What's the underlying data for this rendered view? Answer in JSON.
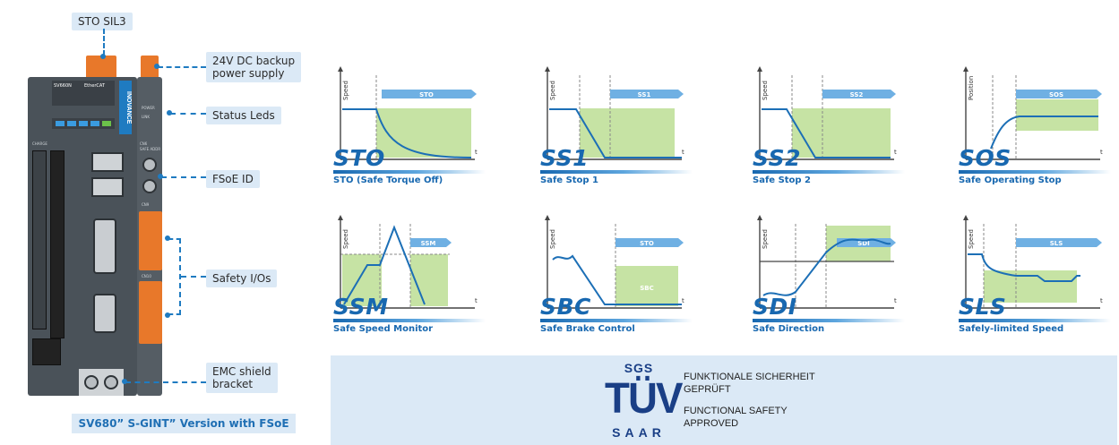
{
  "device": {
    "callouts": {
      "sto_sil3": "STO SIL3",
      "backup_line1": "24V DC backup",
      "backup_line2": "power supply",
      "status_leds": "Status Leds",
      "fsoe_id": "FSoE ID",
      "safety_ios": "Safety I/Os",
      "emc_line1": "EMC shield",
      "emc_line2": "bracket"
    },
    "caption": "SV680” S-GINT” Version with FSoE",
    "brand_side": "INOVANCE",
    "model_plate": "SV660N",
    "ethercat": "EtherCAT",
    "panel_labels": {
      "cn9": "CN9",
      "cn10": "CN10",
      "cn6": "CN6",
      "power": "POWER",
      "link": "LINK",
      "charge": "CHARGE",
      "safe_addr": "SAFE ADDR"
    }
  },
  "functions": [
    {
      "abbr": "STO",
      "name": "STO (Safe Torque Off)",
      "y_axis": "Speed",
      "x_axis": "t",
      "tag": "STO"
    },
    {
      "abbr": "SS1",
      "name": "Safe Stop 1",
      "y_axis": "Speed",
      "x_axis": "t",
      "tag": "SS1"
    },
    {
      "abbr": "SS2",
      "name": "Safe Stop 2",
      "y_axis": "Speed",
      "x_axis": "t",
      "tag": "SS2"
    },
    {
      "abbr": "SOS",
      "name": "Safe Operating Stop",
      "y_axis": "Position",
      "x_axis": "t",
      "tag": "SOS"
    },
    {
      "abbr": "SSM",
      "name": "Safe Speed Monitor",
      "y_axis": "Speed",
      "x_axis": "t",
      "tag": "SSM"
    },
    {
      "abbr": "SBC",
      "name": "Safe Brake Control",
      "y_axis": "Speed",
      "x_axis": "t",
      "tag": "STO",
      "zone_label": "SBC"
    },
    {
      "abbr": "SDI",
      "name": "Safe Direction",
      "y_axis": "Speed",
      "x_axis": "t",
      "tag": "SDI"
    },
    {
      "abbr": "SLS",
      "name": "Safely-limited Speed",
      "y_axis": "Speed",
      "x_axis": "t",
      "tag": "SLS"
    }
  ],
  "certification": {
    "logo_top": "SGS",
    "logo_main": "TÜV",
    "logo_bottom": "SAAR",
    "line1": "FUNKTIONALE SICHERHEIT",
    "line2": "GEPRÜFT",
    "line3": "FUNCTIONAL SAFETY",
    "line4": "APPROVED"
  },
  "colors": {
    "accent_blue": "#1868b0",
    "line_blue": "#1f7bc1",
    "zone_green": "#c6e3a4",
    "callout_bg": "#dbe9f6",
    "tuv_navy": "#1a3f86"
  }
}
